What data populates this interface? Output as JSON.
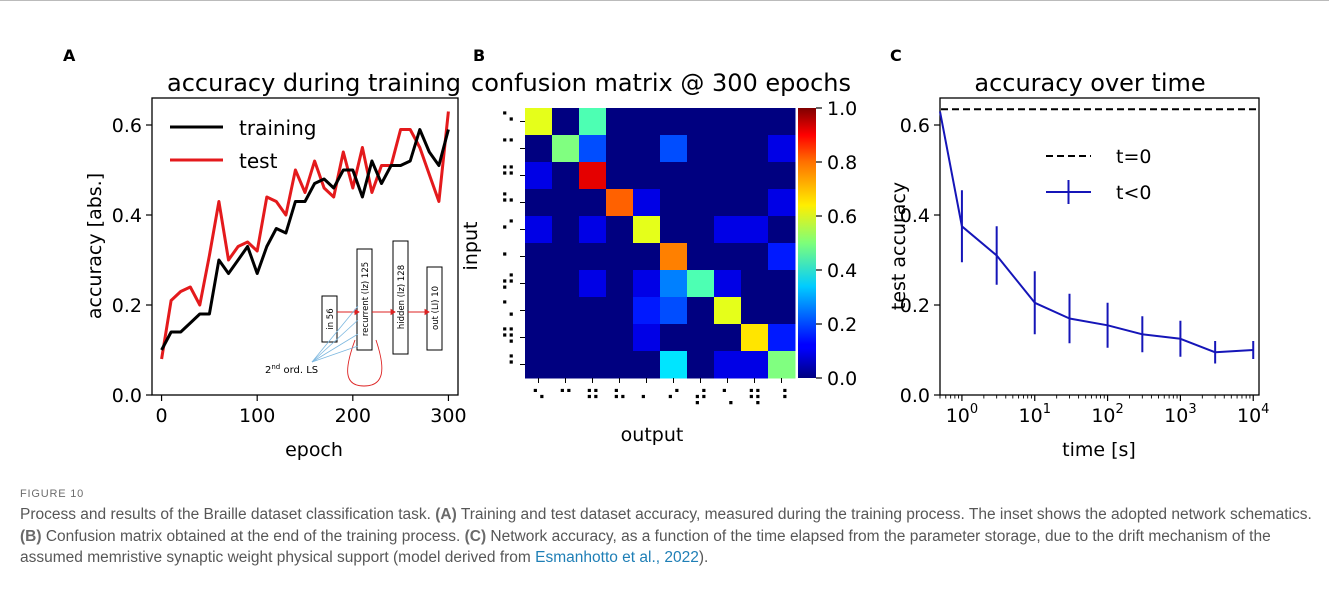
{
  "panels": {
    "a": {
      "letter": "A"
    },
    "b": {
      "letter": "B"
    },
    "c": {
      "letter": "C"
    }
  },
  "inset": {
    "boxes": [
      "in 56",
      "recurrent (lz) 125",
      "hidden (lz) 128",
      "out (LI) 10"
    ],
    "ls_label_prefix": "2",
    "ls_label_sup": "nd",
    "ls_label_suffix": " ord. LS"
  },
  "caption": {
    "figure_label": "FIGURE 10",
    "intro": "Process and results of the Braille dataset classification task. ",
    "a_tag": "(A)",
    "a_text": " Training and test dataset accuracy, measured during the training process. The inset shows the adopted network schematics. ",
    "b_tag": "(B)",
    "b_text": " Confusion matrix obtained at the end of the training process. ",
    "c_tag": "(C)",
    "c_text": " Network accuracy, as a function of the time elapsed from the parameter storage, due to the drift mechanism of the assumed memristive synaptic weight physical support (model derived from ",
    "ref_link": "Esmanhotto et al., 2022",
    "end_text": ")."
  },
  "colors": {
    "training": "#000000",
    "test": "#e41a1c",
    "t_lt_0": "#1515b8",
    "ref_link": "#1f7fb6"
  },
  "chart_data": [
    {
      "type": "line",
      "title": "accuracy during training",
      "xlabel": "epoch",
      "ylabel": "accuracy [abs.]",
      "xlim": [
        -10,
        310
      ],
      "ylim": [
        0,
        0.66
      ],
      "xticks": [
        0,
        100,
        200,
        300
      ],
      "yticks": [
        0.0,
        0.2,
        0.4,
        0.6
      ],
      "x": [
        0,
        10,
        20,
        30,
        40,
        50,
        60,
        70,
        80,
        90,
        100,
        110,
        120,
        130,
        140,
        150,
        160,
        170,
        180,
        190,
        200,
        210,
        220,
        230,
        240,
        250,
        260,
        270,
        280,
        290,
        300
      ],
      "series": [
        {
          "name": "training",
          "values": [
            0.1,
            0.14,
            0.14,
            0.16,
            0.18,
            0.18,
            0.3,
            0.27,
            0.3,
            0.33,
            0.27,
            0.33,
            0.37,
            0.36,
            0.43,
            0.43,
            0.47,
            0.48,
            0.46,
            0.5,
            0.5,
            0.44,
            0.52,
            0.47,
            0.51,
            0.51,
            0.52,
            0.59,
            0.54,
            0.51,
            0.59
          ]
        },
        {
          "name": "test",
          "values": [
            0.08,
            0.21,
            0.23,
            0.24,
            0.2,
            0.31,
            0.43,
            0.3,
            0.33,
            0.34,
            0.32,
            0.44,
            0.43,
            0.4,
            0.5,
            0.45,
            0.52,
            0.46,
            0.44,
            0.54,
            0.46,
            0.55,
            0.45,
            0.51,
            0.51,
            0.59,
            0.59,
            0.55,
            0.49,
            0.43,
            0.63
          ]
        }
      ],
      "legend": "top-left"
    },
    {
      "type": "heatmap",
      "title": "confusion matrix @ 300 epochs",
      "xlabel": "output",
      "ylabel": "input",
      "row_labels": [
        "⠑",
        "⠉",
        "⠛",
        "⠓",
        "⠊",
        "⠂",
        "⠞",
        "⠡",
        "⠻",
        "⠘"
      ],
      "col_labels": [
        "⠑",
        "⠉",
        "⠛",
        "⠓",
        "⠂",
        "⠊",
        "⠞",
        "⠡",
        "⠻",
        "⠘"
      ],
      "colorbar_ticks": [
        0.0,
        0.2,
        0.4,
        0.6,
        0.8,
        1.0
      ],
      "vmin": 0,
      "vmax": 1,
      "values": [
        [
          0.6,
          0.0,
          0.45,
          0.0,
          0.0,
          0.0,
          0.0,
          0.0,
          0.0,
          0.0
        ],
        [
          0.0,
          0.5,
          0.2,
          0.0,
          0.0,
          0.2,
          0.0,
          0.0,
          0.0,
          0.1
        ],
        [
          0.1,
          0.0,
          0.9,
          0.0,
          0.0,
          0.0,
          0.0,
          0.0,
          0.0,
          0.0
        ],
        [
          0.0,
          0.0,
          0.0,
          0.78,
          0.1,
          0.0,
          0.0,
          0.0,
          0.0,
          0.1
        ],
        [
          0.1,
          0.0,
          0.1,
          0.0,
          0.6,
          0.0,
          0.0,
          0.1,
          0.1,
          0.0
        ],
        [
          0.0,
          0.0,
          0.0,
          0.0,
          0.0,
          0.75,
          0.0,
          0.0,
          0.0,
          0.15
        ],
        [
          0.0,
          0.0,
          0.1,
          0.0,
          0.1,
          0.25,
          0.45,
          0.1,
          0.0,
          0.0
        ],
        [
          0.0,
          0.0,
          0.0,
          0.0,
          0.15,
          0.2,
          0.0,
          0.6,
          0.0,
          0.0
        ],
        [
          0.0,
          0.0,
          0.0,
          0.0,
          0.1,
          0.0,
          0.0,
          0.0,
          0.65,
          0.15
        ],
        [
          0.0,
          0.0,
          0.0,
          0.0,
          0.0,
          0.35,
          0.0,
          0.1,
          0.1,
          0.5
        ]
      ]
    },
    {
      "type": "line",
      "title": "accuracy over time",
      "xlabel": "time [s]",
      "ylabel": "test accuracy",
      "xscale": "log",
      "xlim": [
        0.5,
        12000
      ],
      "ylim": [
        0,
        0.66
      ],
      "xticks": [
        1,
        10,
        100,
        1000,
        10000
      ],
      "xtick_labels": [
        {
          "base": "10",
          "exp": "0"
        },
        {
          "base": "10",
          "exp": "1"
        },
        {
          "base": "10",
          "exp": "2"
        },
        {
          "base": "10",
          "exp": "3"
        },
        {
          "base": "10",
          "exp": "4"
        }
      ],
      "yticks": [
        0.0,
        0.2,
        0.4,
        0.6
      ],
      "series": [
        {
          "name": "t=0",
          "style": "dashed",
          "x": [
            0.5,
            12000
          ],
          "y": [
            0.635,
            0.635
          ]
        },
        {
          "name": "t<0",
          "style": "errorbar",
          "x": [
            0.5,
            1,
            3,
            10,
            30,
            100,
            300,
            1000,
            3000,
            10000
          ],
          "y": [
            0.63,
            0.375,
            0.31,
            0.205,
            0.17,
            0.155,
            0.135,
            0.125,
            0.095,
            0.1
          ],
          "err": [
            0.0,
            0.08,
            0.065,
            0.07,
            0.055,
            0.05,
            0.04,
            0.04,
            0.025,
            0.02
          ]
        }
      ],
      "legend": "right"
    }
  ]
}
